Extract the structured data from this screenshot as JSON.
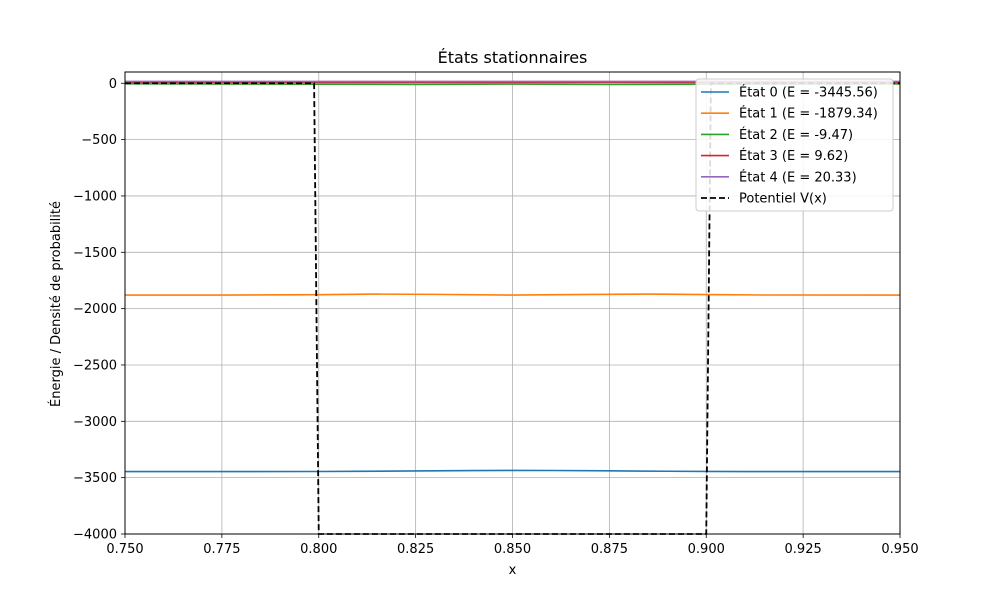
{
  "chart_data": {
    "type": "line",
    "title": "États stationnaires",
    "xlabel": "x",
    "ylabel": "Énergie / Densité de probabilité",
    "xlim": [
      0.75,
      0.95
    ],
    "ylim": [
      -4000,
      100
    ],
    "xticks": [
      "0.750",
      "0.775",
      "0.800",
      "0.825",
      "0.850",
      "0.875",
      "0.900",
      "0.925",
      "0.950"
    ],
    "yticks": [
      "0",
      "−500",
      "−1000",
      "−1500",
      "−2000",
      "−2500",
      "−3000",
      "−3500",
      "−4000"
    ],
    "grid": true,
    "legend_position": "top-right",
    "series": [
      {
        "name": "État 0 (E = -3445.56)",
        "color": "#1f77b4",
        "style": "solid",
        "points": [
          [
            0.75,
            -3445.6
          ],
          [
            0.775,
            -3445.6
          ],
          [
            0.8,
            -3445.3
          ],
          [
            0.81,
            -3444.0
          ],
          [
            0.825,
            -3440.5
          ],
          [
            0.84,
            -3437.0
          ],
          [
            0.85,
            -3436.0
          ],
          [
            0.86,
            -3436.5
          ],
          [
            0.875,
            -3439.5
          ],
          [
            0.89,
            -3443.0
          ],
          [
            0.9,
            -3445.0
          ],
          [
            0.91,
            -3445.5
          ],
          [
            0.925,
            -3445.6
          ],
          [
            0.95,
            -3445.6
          ]
        ]
      },
      {
        "name": "État 1 (E = -1879.34)",
        "color": "#ff7f0e",
        "style": "solid",
        "points": [
          [
            0.75,
            -1879.3
          ],
          [
            0.775,
            -1879.3
          ],
          [
            0.8,
            -1876.0
          ],
          [
            0.815,
            -1871.0
          ],
          [
            0.83,
            -1873.5
          ],
          [
            0.85,
            -1880.0
          ],
          [
            0.87,
            -1874.0
          ],
          [
            0.885,
            -1871.0
          ],
          [
            0.9,
            -1875.5
          ],
          [
            0.915,
            -1879.0
          ],
          [
            0.95,
            -1879.3
          ]
        ]
      },
      {
        "name": "État 2 (E = -9.47)",
        "color": "#2ca02c",
        "style": "solid",
        "points": [
          [
            0.75,
            -5.0
          ],
          [
            0.8,
            -8.0
          ],
          [
            0.825,
            -10.0
          ],
          [
            0.85,
            -7.0
          ],
          [
            0.875,
            -11.0
          ],
          [
            0.9,
            -8.0
          ],
          [
            0.95,
            -6.0
          ]
        ]
      },
      {
        "name": "État 3 (E = 9.62)",
        "color": "#d62728",
        "style": "solid",
        "points": [
          [
            0.75,
            9.6
          ],
          [
            0.95,
            9.6
          ]
        ]
      },
      {
        "name": "État 4 (E = 20.33)",
        "color": "#9467bd",
        "style": "solid",
        "points": [
          [
            0.75,
            16.0
          ],
          [
            0.95,
            16.0
          ]
        ]
      },
      {
        "name": "Potentiel V(x)",
        "color": "#000000",
        "style": "dashed",
        "points": [
          [
            0.75,
            0
          ],
          [
            0.7988,
            0
          ],
          [
            0.8,
            -4000
          ],
          [
            0.9,
            -4000
          ],
          [
            0.9012,
            0
          ],
          [
            0.95,
            0
          ]
        ]
      }
    ]
  }
}
